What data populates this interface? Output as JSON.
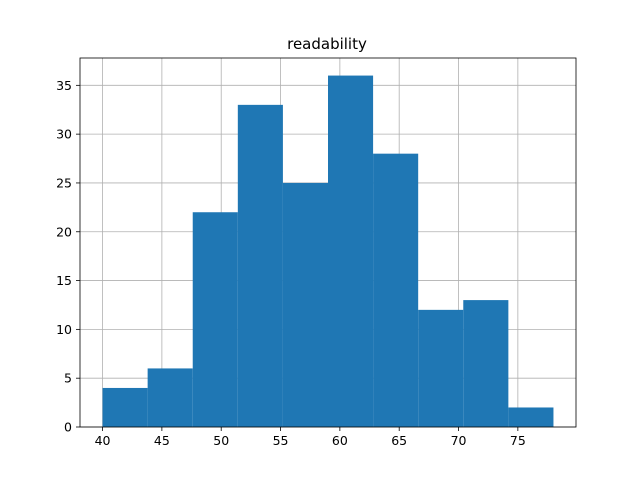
{
  "chart_data": {
    "type": "bar",
    "title": "readability",
    "xlabel": "",
    "ylabel": "",
    "bins": [
      {
        "start": 40.0,
        "end": 43.8,
        "count": 4
      },
      {
        "start": 43.8,
        "end": 47.6,
        "count": 6
      },
      {
        "start": 47.6,
        "end": 51.4,
        "count": 22
      },
      {
        "start": 51.4,
        "end": 55.2,
        "count": 33
      },
      {
        "start": 55.2,
        "end": 59.0,
        "count": 25
      },
      {
        "start": 59.0,
        "end": 62.8,
        "count": 36
      },
      {
        "start": 62.8,
        "end": 66.6,
        "count": 28
      },
      {
        "start": 66.6,
        "end": 70.4,
        "count": 12
      },
      {
        "start": 70.4,
        "end": 74.2,
        "count": 13
      },
      {
        "start": 74.2,
        "end": 78.0,
        "count": 2
      }
    ],
    "xlim": [
      38.1,
      79.9
    ],
    "ylim": [
      0,
      37.8
    ],
    "xticks": [
      40,
      45,
      50,
      55,
      60,
      65,
      70,
      75
    ],
    "yticks": [
      0,
      5,
      10,
      15,
      20,
      25,
      30,
      35
    ],
    "grid": true,
    "bar_color": "#1f77b4"
  }
}
